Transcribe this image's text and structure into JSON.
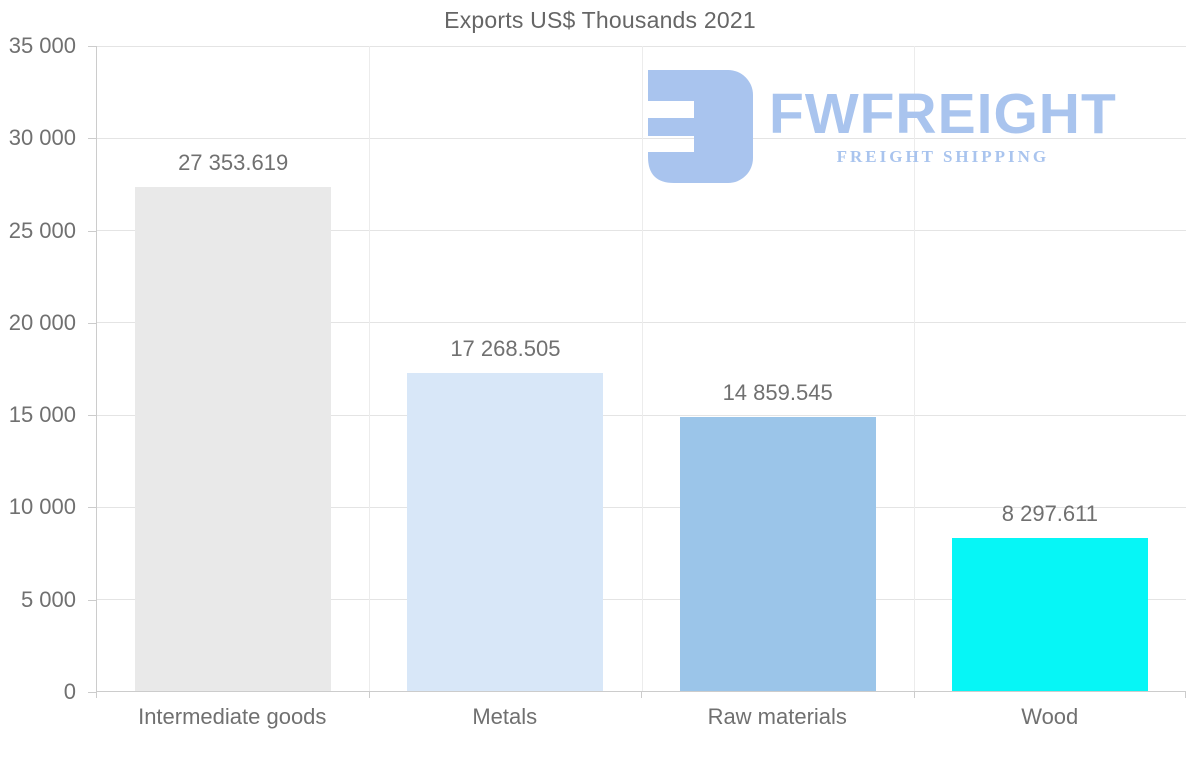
{
  "title": "Exports US$ Thousands 2021",
  "watermark": {
    "brand": "FWFREIGHT",
    "tagline": "FREIGHT SHIPPING",
    "color": "#a9c4ee"
  },
  "axis_colors": {
    "axis_line": "#cccccc",
    "h_gridline": "#e4e4e4",
    "v_gridline": "#ececec",
    "text": "#707070"
  },
  "chart_data": {
    "type": "bar",
    "title": "Exports US$ Thousands 2021",
    "categories": [
      "Intermediate goods",
      "Metals",
      "Raw materials",
      "Wood"
    ],
    "values": [
      27353.619,
      17268.505,
      14859.545,
      8297.611
    ],
    "value_labels": [
      "27 353.619",
      "17 268.505",
      "14 859.545",
      "8 297.611"
    ],
    "bar_colors": [
      "#e9e9e9",
      "#d8e7f8",
      "#9bc5e9",
      "#06f6f6"
    ],
    "xlabel": "",
    "ylabel": "",
    "ylim": [
      0,
      35000
    ],
    "ytick_interval": 5000,
    "ytick_labels": [
      "35 000",
      "30 000",
      "25 000",
      "20 000",
      "15 000",
      "10 000",
      "5 000",
      "0"
    ],
    "grid": "horizontal gridlines every 5000 plus faint vertical category separators",
    "legend": "none"
  }
}
